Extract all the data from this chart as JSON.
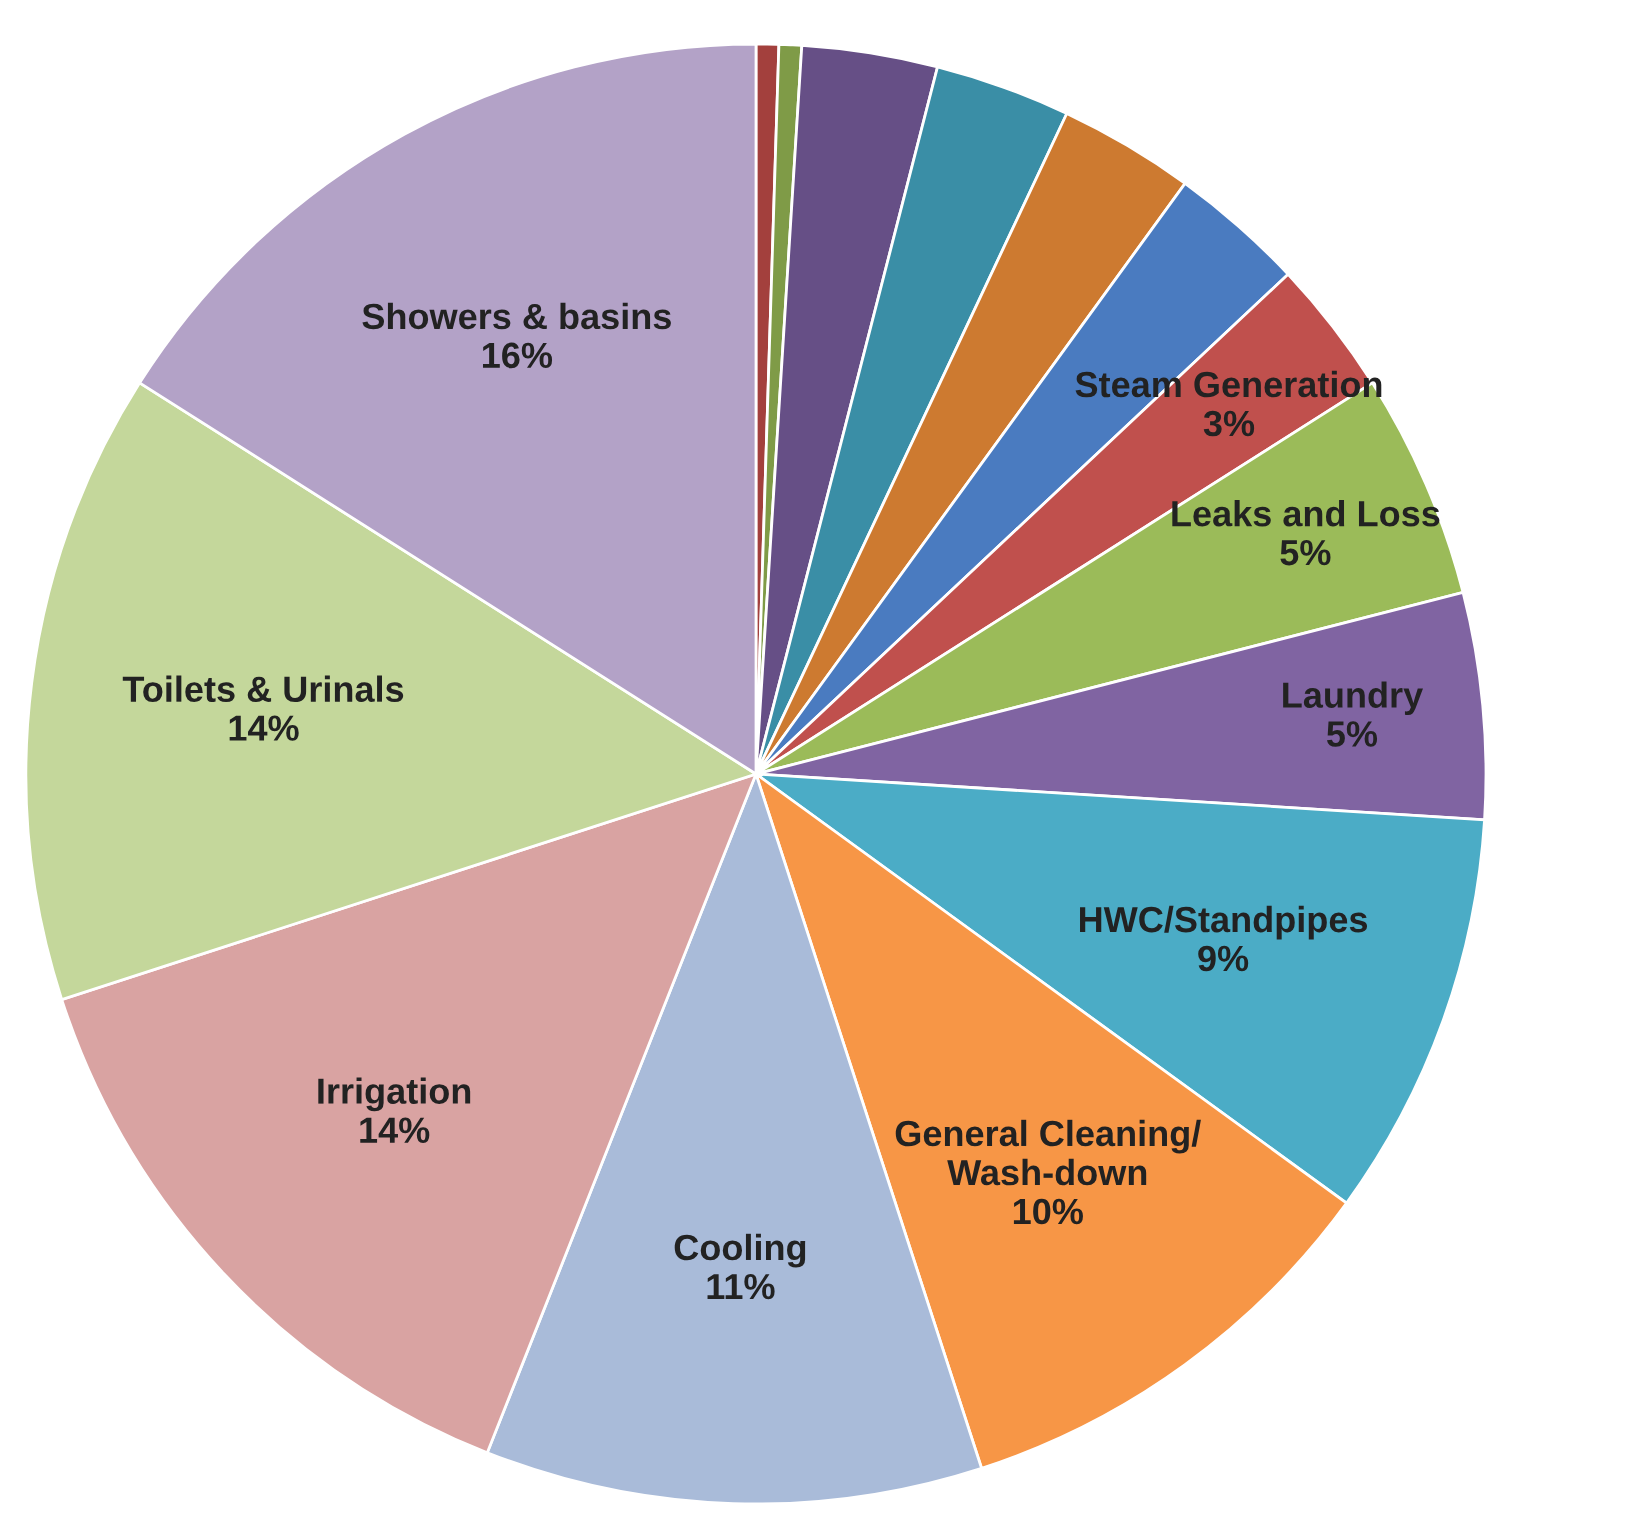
{
  "chart_data": {
    "type": "pie",
    "categories": [
      null,
      null,
      null,
      null,
      null,
      null,
      "Steam Generation",
      "Leaks and Loss",
      "Laundry",
      "HWC/Standpipes",
      "General Cleaning/\nWash-down",
      "Cooling",
      "Irrigation",
      "Toilets & Urinals",
      "Showers & basins"
    ],
    "values": [
      0.5,
      0.5,
      3,
      3,
      3,
      3,
      3,
      5,
      5,
      9,
      10,
      11,
      14,
      14,
      16
    ],
    "value_labels": [
      null,
      null,
      null,
      null,
      null,
      null,
      "3%",
      "5%",
      "5%",
      "9%",
      "10%",
      "11%",
      "14%",
      "14%",
      "16%"
    ],
    "colors": [
      "#a3403d",
      "#7f9b47",
      "#664f86",
      "#3a8ea6",
      "#cd7a30",
      "#4a7bc0",
      "#c0504d",
      "#9bbb59",
      "#8064a2",
      "#4bacc6",
      "#f79646",
      "#a9bbd9",
      "#d9a3a2",
      "#c4d79b",
      "#b3a2c7"
    ]
  }
}
